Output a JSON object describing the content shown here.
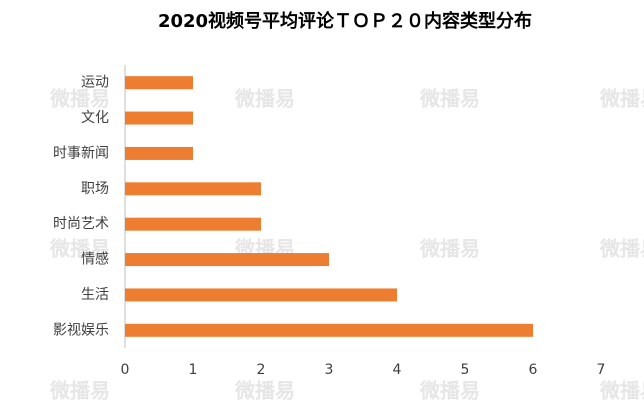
{
  "chart_data": {
    "type": "barh",
    "title": "2020视频号平均评论ＴＯＰ２０内容类型分布",
    "categories": [
      "运动",
      "文化",
      "时事新闻",
      "职场",
      "时尚艺术",
      "情感",
      "生活",
      "影视娱乐"
    ],
    "values": [
      1,
      1,
      1,
      2,
      2,
      3,
      4,
      6
    ],
    "color": "#ed7d31",
    "xlim": [
      0,
      7
    ],
    "xticks": [
      0,
      1,
      2,
      3,
      4,
      5,
      6,
      7
    ],
    "grid": false,
    "watermark": "微播易"
  }
}
